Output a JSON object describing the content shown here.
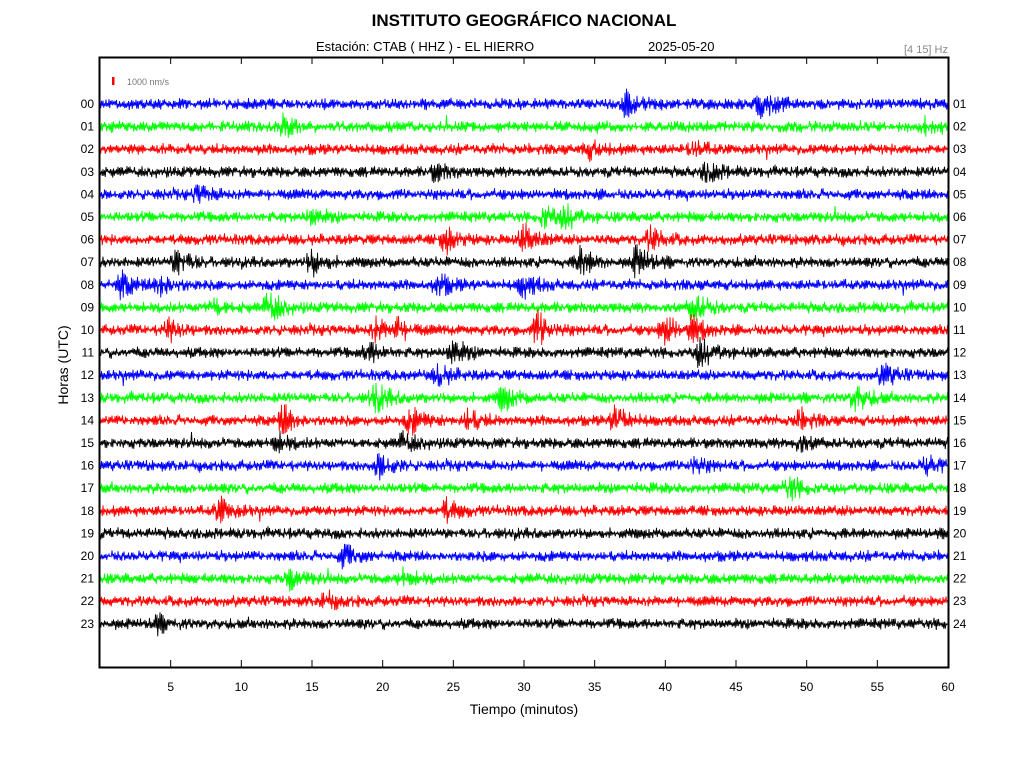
{
  "chart_data": {
    "type": "line",
    "title": "INSTITUTO GEOGRÁFICO NACIONAL",
    "station_label": "Estación:  CTAB ( HHZ ) - EL HIERRO",
    "date": "2025-05-20",
    "frequency_band": "[4 15] Hz",
    "xlabel": "Tiempo (minutos)",
    "ylabel": "Horas (UTC)",
    "xlim": [
      0,
      60
    ],
    "x_ticks": [
      "5",
      "10",
      "15",
      "20",
      "25",
      "30",
      "35",
      "40",
      "45",
      "50",
      "55",
      "60"
    ],
    "scale_bar": {
      "label": "1000 nm/s",
      "color": "#ff0000"
    },
    "left_labels": [
      "00",
      "01",
      "02",
      "03",
      "04",
      "05",
      "06",
      "07",
      "08",
      "09",
      "10",
      "11",
      "12",
      "13",
      "14",
      "15",
      "16",
      "17",
      "18",
      "19",
      "20",
      "21",
      "22",
      "23"
    ],
    "right_labels": [
      "01",
      "02",
      "03",
      "04",
      "05",
      "06",
      "07",
      "08",
      "09",
      "10",
      "11",
      "12",
      "13",
      "14",
      "15",
      "16",
      "17",
      "18",
      "19",
      "20",
      "21",
      "22",
      "23",
      "24"
    ],
    "trace_colors": [
      "#0000ff",
      "#00ff00",
      "#ff0000",
      "#000000"
    ],
    "events": [
      {
        "hour": 0,
        "minute": 37.3,
        "amp": 2.0
      },
      {
        "hour": 0,
        "minute": 46.8,
        "amp": 2.2
      },
      {
        "hour": 1,
        "minute": 13.0,
        "amp": 1.4
      },
      {
        "hour": 1,
        "minute": 58.5,
        "amp": 1.3
      },
      {
        "hour": 2,
        "minute": 34.6,
        "amp": 1.3
      },
      {
        "hour": 2,
        "minute": 42.0,
        "amp": 1.2
      },
      {
        "hour": 3,
        "minute": 23.8,
        "amp": 1.3
      },
      {
        "hour": 3,
        "minute": 43.0,
        "amp": 1.5
      },
      {
        "hour": 4,
        "minute": 7.0,
        "amp": 1.3
      },
      {
        "hour": 5,
        "minute": 15.0,
        "amp": 1.3
      },
      {
        "hour": 5,
        "minute": 31.5,
        "amp": 1.6
      },
      {
        "hour": 5,
        "minute": 33.0,
        "amp": 1.5
      },
      {
        "hour": 6,
        "minute": 24.5,
        "amp": 1.9
      },
      {
        "hour": 6,
        "minute": 30.0,
        "amp": 2.2
      },
      {
        "hour": 6,
        "minute": 39.0,
        "amp": 1.8
      },
      {
        "hour": 7,
        "minute": 5.5,
        "amp": 2.0
      },
      {
        "hour": 7,
        "minute": 15.0,
        "amp": 1.8
      },
      {
        "hour": 7,
        "minute": 34.0,
        "amp": 2.1
      },
      {
        "hour": 7,
        "minute": 38.0,
        "amp": 2.4
      },
      {
        "hour": 8,
        "minute": 1.5,
        "amp": 1.8
      },
      {
        "hour": 8,
        "minute": 4.3,
        "amp": 2.0
      },
      {
        "hour": 8,
        "minute": 24.0,
        "amp": 1.6
      },
      {
        "hour": 8,
        "minute": 30.0,
        "amp": 1.7
      },
      {
        "hour": 9,
        "minute": 8.0,
        "amp": 1.5
      },
      {
        "hour": 9,
        "minute": 12.0,
        "amp": 2.4
      },
      {
        "hour": 9,
        "minute": 42.0,
        "amp": 2.3
      },
      {
        "hour": 10,
        "minute": 4.8,
        "amp": 1.6
      },
      {
        "hour": 10,
        "minute": 19.5,
        "amp": 1.6
      },
      {
        "hour": 10,
        "minute": 21.0,
        "amp": 1.5
      },
      {
        "hour": 10,
        "minute": 31.0,
        "amp": 2.5
      },
      {
        "hour": 10,
        "minute": 40.0,
        "amp": 2.5
      },
      {
        "hour": 10,
        "minute": 42.0,
        "amp": 1.8
      },
      {
        "hour": 11,
        "minute": 19.0,
        "amp": 1.4
      },
      {
        "hour": 11,
        "minute": 25.0,
        "amp": 2.0
      },
      {
        "hour": 11,
        "minute": 42.5,
        "amp": 2.2
      },
      {
        "hour": 12,
        "minute": 24.0,
        "amp": 1.5
      },
      {
        "hour": 12,
        "minute": 55.5,
        "amp": 1.6
      },
      {
        "hour": 13,
        "minute": 19.5,
        "amp": 2.2
      },
      {
        "hour": 13,
        "minute": 28.5,
        "amp": 1.8
      },
      {
        "hour": 13,
        "minute": 53.5,
        "amp": 2.0
      },
      {
        "hour": 14,
        "minute": 13.0,
        "amp": 2.3
      },
      {
        "hour": 14,
        "minute": 22.0,
        "amp": 1.9
      },
      {
        "hour": 14,
        "minute": 26.0,
        "amp": 1.7
      },
      {
        "hour": 14,
        "minute": 36.5,
        "amp": 2.1
      },
      {
        "hour": 14,
        "minute": 49.5,
        "amp": 1.5
      },
      {
        "hour": 15,
        "minute": 12.5,
        "amp": 1.4
      },
      {
        "hour": 15,
        "minute": 21.5,
        "amp": 1.4
      },
      {
        "hour": 15,
        "minute": 49.5,
        "amp": 1.3
      },
      {
        "hour": 16,
        "minute": 19.8,
        "amp": 1.8
      },
      {
        "hour": 16,
        "minute": 42.0,
        "amp": 1.2
      },
      {
        "hour": 16,
        "minute": 58.5,
        "amp": 1.4
      },
      {
        "hour": 17,
        "minute": 48.8,
        "amp": 1.6
      },
      {
        "hour": 18,
        "minute": 8.5,
        "amp": 1.9
      },
      {
        "hour": 18,
        "minute": 24.5,
        "amp": 1.6
      },
      {
        "hour": 20,
        "minute": 17.3,
        "amp": 1.6
      },
      {
        "hour": 21,
        "minute": 13.5,
        "amp": 1.5
      },
      {
        "hour": 21,
        "minute": 21.5,
        "amp": 1.3
      },
      {
        "hour": 22,
        "minute": 16.0,
        "amp": 1.2
      },
      {
        "hour": 23,
        "minute": 4.0,
        "amp": 1.2
      }
    ]
  }
}
